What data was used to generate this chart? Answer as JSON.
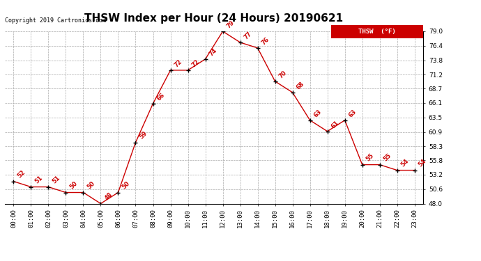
{
  "title": "THSW Index per Hour (24 Hours) 20190621",
  "copyright": "Copyright 2019 Cartronics.com",
  "legend_label": "THSW  (°F)",
  "hours": [
    "00:00",
    "01:00",
    "02:00",
    "03:00",
    "04:00",
    "05:00",
    "06:00",
    "07:00",
    "08:00",
    "09:00",
    "10:00",
    "11:00",
    "12:00",
    "13:00",
    "14:00",
    "15:00",
    "16:00",
    "17:00",
    "18:00",
    "19:00",
    "20:00",
    "21:00",
    "22:00",
    "23:00"
  ],
  "values": [
    52,
    51,
    51,
    50,
    50,
    48,
    50,
    59,
    66,
    72,
    72,
    74,
    79,
    77,
    76,
    70,
    68,
    63,
    61,
    63,
    55,
    55,
    54,
    54
  ],
  "line_color": "#cc0000",
  "marker_color": "#000000",
  "label_color": "#cc0000",
  "background_color": "#ffffff",
  "grid_color": "#aaaaaa",
  "ylim_min": 48.0,
  "ylim_max": 79.0,
  "yticks": [
    48.0,
    50.6,
    53.2,
    55.8,
    58.3,
    60.9,
    63.5,
    66.1,
    68.7,
    71.2,
    73.8,
    76.4,
    79.0
  ],
  "title_fontsize": 11,
  "label_fontsize": 6,
  "tick_fontsize": 6.5,
  "copyright_fontsize": 6,
  "legend_bg": "#cc0000",
  "legend_text_color": "#ffffff"
}
